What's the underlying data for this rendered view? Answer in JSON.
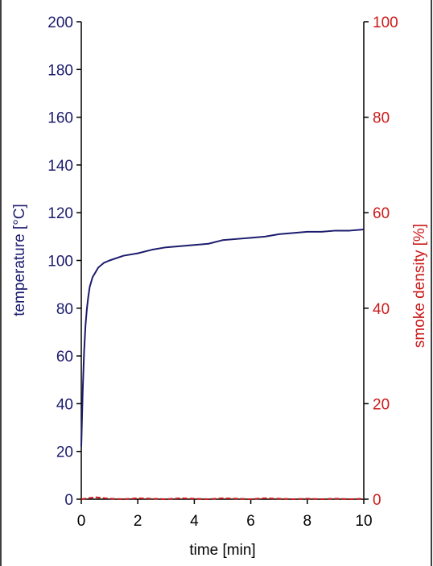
{
  "chart_data": {
    "type": "line",
    "title": "",
    "xlabel": "time [min]",
    "ylabel": "temperature [°C]",
    "y2label": "smoke density [%]",
    "xlim": [
      0,
      10
    ],
    "ylim": [
      0,
      200
    ],
    "y2lim": [
      0,
      100
    ],
    "x_ticks": [
      "0",
      "2",
      "4",
      "6",
      "8",
      "10"
    ],
    "y_ticks": [
      "0",
      "20",
      "40",
      "60",
      "80",
      "100",
      "120",
      "140",
      "160",
      "180",
      "200"
    ],
    "y2_ticks": [
      "0",
      "20",
      "40",
      "60",
      "80",
      "100"
    ],
    "grid": false,
    "legend": "none",
    "colors": {
      "temperature": "#1c1c6e",
      "smoke_density": "#cc1a1a",
      "axis": "#000000"
    },
    "series": [
      {
        "axis": "left",
        "x": [
          0,
          0.05,
          0.1,
          0.15,
          0.2,
          0.25,
          0.3,
          0.4,
          0.5,
          0.6,
          0.8,
          1.0,
          1.5,
          2.0,
          2.5,
          3.0,
          3.5,
          4.0,
          4.5,
          5.0,
          5.5,
          6.0,
          6.5,
          7.0,
          7.5,
          8.0,
          8.5,
          9.0,
          9.5,
          10.0
        ],
        "y": [
          22,
          45,
          62,
          73,
          80,
          85,
          89,
          93,
          95,
          97,
          99,
          100,
          102,
          103,
          104.5,
          105.5,
          106,
          106.5,
          107,
          108.5,
          109,
          109.5,
          110,
          111,
          111.5,
          112,
          112,
          112.5,
          112.5,
          113
        ]
      },
      {
        "axis": "right",
        "x": [
          0,
          0.5,
          1,
          1.5,
          2,
          2.5,
          3,
          3.5,
          4,
          4.5,
          5,
          5.5,
          6,
          6.5,
          7,
          7.5,
          8,
          8.5,
          9,
          9.5,
          10
        ],
        "y": [
          0,
          0.4,
          0.1,
          0,
          0.2,
          0.1,
          0,
          0.2,
          0.1,
          0,
          0.2,
          0.1,
          0,
          0.2,
          0.1,
          0,
          0.1,
          0,
          0.1,
          0,
          0.1
        ]
      }
    ]
  }
}
